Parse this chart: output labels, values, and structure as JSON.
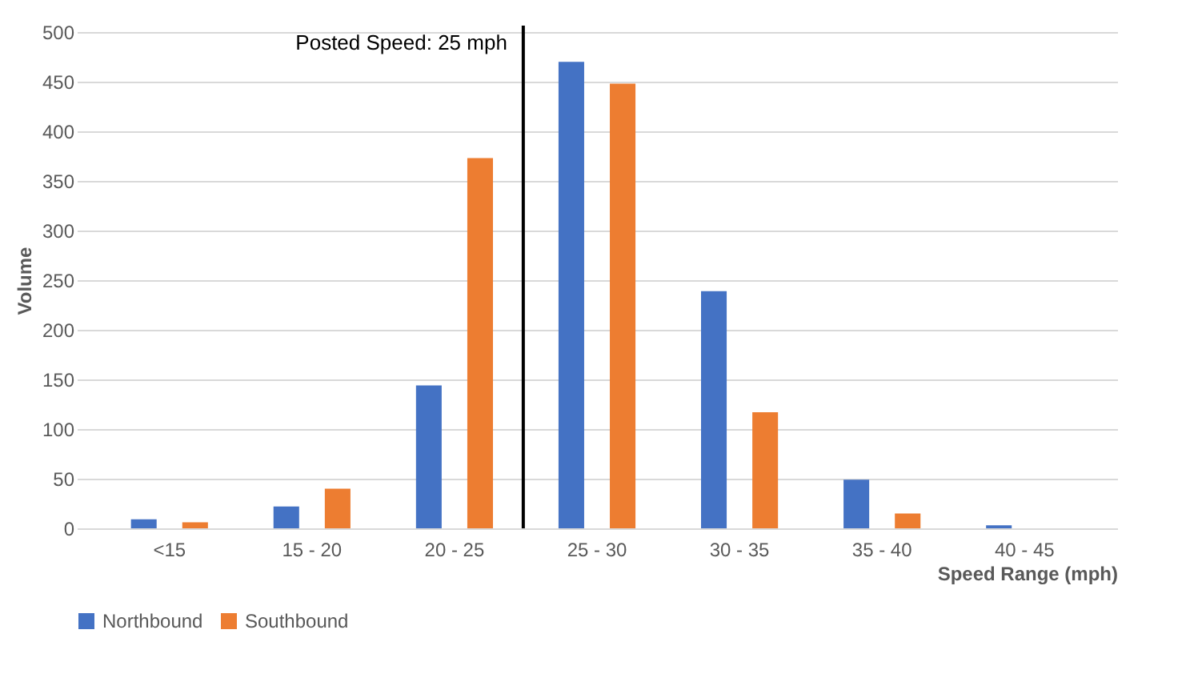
{
  "chart_data": {
    "type": "bar",
    "xlabel": "Speed Range (mph)",
    "ylabel": "Volume",
    "categories": [
      "<15",
      "15 - 20",
      "20 - 25",
      "25 - 30",
      "30 - 35",
      "35 - 40",
      "40 - 45"
    ],
    "series": [
      {
        "name": "Northbound",
        "color": "#4472c4",
        "values": [
          9,
          22,
          144,
          470,
          239,
          49,
          3
        ]
      },
      {
        "name": "Southbound",
        "color": "#ed7d31",
        "values": [
          6,
          40,
          373,
          448,
          117,
          15,
          0
        ]
      }
    ],
    "ylim": [
      0,
      500
    ],
    "yticks": [
      0,
      50,
      100,
      150,
      200,
      250,
      300,
      350,
      400,
      450,
      500
    ],
    "grid": "y",
    "legend": "bottom",
    "ref_lines": [
      {
        "axis": "x",
        "value": "25 - 30",
        "label": "Posted Speed: 25 mph",
        "color": "#000000"
      }
    ]
  }
}
